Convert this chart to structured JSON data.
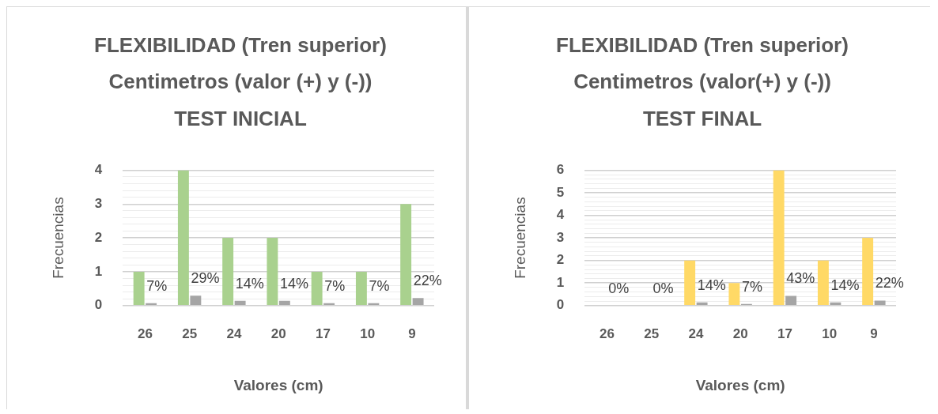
{
  "chart_data": [
    {
      "type": "bar",
      "title": "FLEXIBILIDAD (Tren superior)\nCentimetros (valor (+) y (-))\nTEST INICIAL",
      "xlabel": "Valores (cm)",
      "ylabel": "Frecuencias",
      "categories": [
        "26",
        "25",
        "24",
        "20",
        "17",
        "10",
        "9"
      ],
      "series": [
        {
          "color": "#a9d18e",
          "values": [
            1,
            4,
            2,
            2,
            1,
            1,
            3
          ]
        },
        {
          "color": "#a5a5a5",
          "values": [
            0.07,
            0.29,
            0.14,
            0.14,
            0.07,
            0.07,
            0.22
          ],
          "value_labels": [
            "7%",
            "29%",
            "14%",
            "14%",
            "7%",
            "7%",
            "22%"
          ]
        }
      ],
      "ylim": [
        0,
        4
      ],
      "yticks": [
        0,
        {
          "value": 0.2,
          "label": null
        },
        {
          "value": 0.4,
          "label": null
        },
        {
          "value": 0.6,
          "label": null
        },
        {
          "value": 0.8,
          "label": null
        },
        1,
        {
          "value": 1.2,
          "label": null
        },
        {
          "value": 1.4,
          "label": null
        },
        {
          "value": 1.6,
          "label": null
        },
        {
          "value": 1.8,
          "label": null
        },
        2,
        {
          "value": 2.2,
          "label": null
        },
        {
          "value": 2.4,
          "label": null
        },
        {
          "value": 2.6,
          "label": null
        },
        {
          "value": 2.8,
          "label": null
        },
        3,
        {
          "value": 3.2,
          "label": null
        },
        {
          "value": 3.4,
          "label": null
        },
        {
          "value": 3.6,
          "label": null
        },
        {
          "value": 3.8,
          "label": null
        },
        4
      ],
      "grid": "y"
    },
    {
      "type": "bar",
      "title": "FLEXIBILIDAD (Tren superior)\nCentimetros (valor(+) y (-))\nTEST FINAL",
      "xlabel": "Valores (cm)",
      "ylabel": "Frecuencias",
      "categories": [
        "26",
        "25",
        "24",
        "20",
        "17",
        "10",
        "9"
      ],
      "series": [
        {
          "color": "#ffd966",
          "values": [
            0,
            0,
            2,
            1,
            6,
            2,
            3
          ]
        },
        {
          "color": "#a5a5a5",
          "values": [
            0,
            0,
            0.14,
            0.07,
            0.43,
            0.14,
            0.22
          ],
          "value_labels": [
            "0%",
            "0%",
            "14%",
            "7%",
            "43%",
            "14%",
            "22%"
          ]
        }
      ],
      "ylim": [
        0,
        6
      ],
      "yticks": [
        0,
        {
          "value": 0.2,
          "label": null
        },
        {
          "value": 0.4,
          "label": null
        },
        {
          "value": 0.6,
          "label": null
        },
        {
          "value": 0.8,
          "label": null
        },
        1,
        {
          "value": 1.2,
          "label": null
        },
        {
          "value": 1.4,
          "label": null
        },
        {
          "value": 1.6,
          "label": null
        },
        {
          "value": 1.8,
          "label": null
        },
        2,
        {
          "value": 2.2,
          "label": null
        },
        {
          "value": 2.4,
          "label": null
        },
        {
          "value": 2.6,
          "label": null
        },
        {
          "value": 2.8,
          "label": null
        },
        3,
        {
          "value": 3.2,
          "label": null
        },
        {
          "value": 3.4,
          "label": null
        },
        {
          "value": 3.6,
          "label": null
        },
        {
          "value": 3.8,
          "label": null
        },
        4,
        {
          "value": 4.2,
          "label": null
        },
        {
          "value": 4.4,
          "label": null
        },
        {
          "value": 4.6,
          "label": null
        },
        {
          "value": 4.8,
          "label": null
        },
        5,
        {
          "value": 5.2,
          "label": null
        },
        {
          "value": 5.4,
          "label": null
        },
        {
          "value": 5.6,
          "label": null
        },
        {
          "value": 5.8,
          "label": null
        },
        6
      ],
      "grid": "y"
    }
  ]
}
